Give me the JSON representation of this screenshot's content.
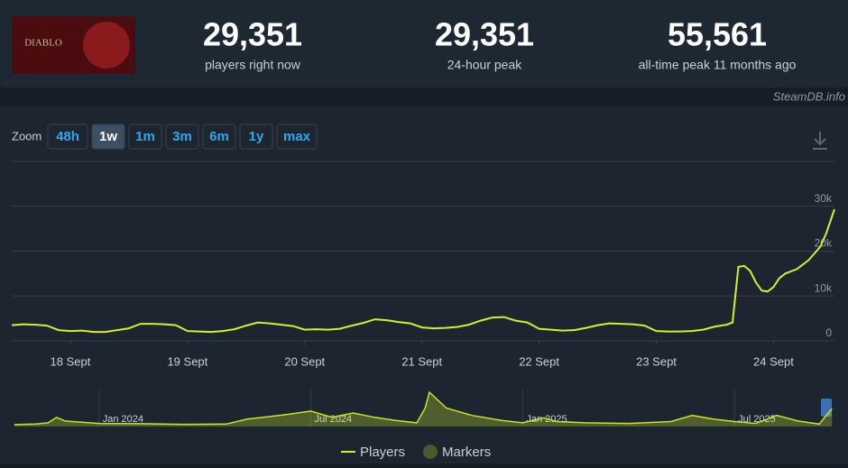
{
  "header": {
    "game_logo_text": "DIABLO",
    "stats": [
      {
        "value": "29,351",
        "label": "players right now"
      },
      {
        "value": "29,351",
        "label": "24-hour peak"
      },
      {
        "value": "55,561",
        "label": "all-time peak 11 months ago"
      }
    ],
    "watermark": "SteamDB.info"
  },
  "zoom": {
    "label": "Zoom",
    "buttons": [
      "48h",
      "1w",
      "1m",
      "3m",
      "6m",
      "1y",
      "max"
    ],
    "active": 1
  },
  "legend": {
    "items": [
      {
        "name": "Players",
        "color": "#d4ef2c"
      },
      {
        "name": "Markers",
        "color": "#4b5a2c"
      }
    ]
  },
  "chart_data": [
    {
      "type": "line",
      "series": [
        {
          "name": "Players",
          "color": "#d4ef2c",
          "x": [
            17.5,
            17.6,
            17.7,
            17.8,
            17.9,
            18.0,
            18.1,
            18.2,
            18.3,
            18.4,
            18.5,
            18.6,
            18.7,
            18.8,
            18.9,
            19.0,
            19.1,
            19.2,
            19.3,
            19.4,
            19.5,
            19.6,
            19.7,
            19.8,
            19.9,
            20.0,
            20.1,
            20.2,
            20.3,
            20.4,
            20.5,
            20.6,
            20.7,
            20.8,
            20.9,
            21.0,
            21.1,
            21.2,
            21.3,
            21.4,
            21.5,
            21.6,
            21.7,
            21.8,
            21.9,
            22.0,
            22.1,
            22.2,
            22.3,
            22.4,
            22.5,
            22.6,
            22.7,
            22.8,
            22.9,
            23.0,
            23.1,
            23.2,
            23.3,
            23.4,
            23.5,
            23.6,
            23.65,
            23.7,
            23.75,
            23.8,
            23.85,
            23.9,
            23.95,
            24.0,
            24.05,
            24.1,
            24.2,
            24.3,
            24.35,
            24.4,
            24.45,
            24.52
          ],
          "values": [
            3500,
            3700,
            3600,
            3400,
            2400,
            2200,
            2300,
            2000,
            2000,
            2400,
            2800,
            3800,
            3800,
            3700,
            3500,
            2200,
            2100,
            2000,
            2200,
            2600,
            3400,
            4100,
            3900,
            3600,
            3300,
            2500,
            2600,
            2500,
            2700,
            3400,
            4000,
            4800,
            4600,
            4200,
            3900,
            3000,
            2800,
            2900,
            3100,
            3600,
            4500,
            5200,
            5300,
            4500,
            4100,
            2700,
            2500,
            2300,
            2400,
            2900,
            3500,
            3900,
            3800,
            3700,
            3400,
            2200,
            2100,
            2100,
            2200,
            2500,
            3200,
            3600,
            4100,
            16500,
            16700,
            15600,
            13000,
            11200,
            11000,
            12000,
            14000,
            15000,
            16000,
            18000,
            19500,
            21000,
            24000,
            29351
          ]
        }
      ],
      "xlim": [
        17.5,
        24.52
      ],
      "xticks": [
        {
          "value": 18,
          "label": "18 Sept"
        },
        {
          "value": 19,
          "label": "19 Sept"
        },
        {
          "value": 20,
          "label": "20 Sept"
        },
        {
          "value": 21,
          "label": "21 Sept"
        },
        {
          "value": 22,
          "label": "22 Sept"
        },
        {
          "value": 23,
          "label": "23 Sept"
        },
        {
          "value": 24,
          "label": "24 Sept"
        }
      ],
      "ylim": [
        0,
        40000
      ],
      "yticks": [
        0,
        {
          "value": 10000,
          "label": "10k"
        },
        {
          "value": 20000,
          "label": "20k"
        },
        {
          "value": 30000,
          "label": "30k"
        }
      ],
      "grid": true
    },
    {
      "type": "area",
      "series": [
        {
          "name": "Players",
          "color": "#c8e22a",
          "x": [
            2023.8,
            2023.85,
            2023.88,
            2023.9,
            2023.92,
            2023.96,
            2024.0,
            2024.1,
            2024.2,
            2024.3,
            2024.35,
            2024.4,
            2024.45,
            2024.5,
            2024.55,
            2024.6,
            2024.65,
            2024.7,
            2024.75,
            2024.77,
            2024.78,
            2024.82,
            2024.88,
            2024.95,
            2025.0,
            2025.05,
            2025.08,
            2025.15,
            2025.25,
            2025.35,
            2025.4,
            2025.45,
            2025.5,
            2025.55,
            2025.6,
            2025.65,
            2025.7,
            2025.73
          ],
          "values": [
            3000,
            4000,
            6000,
            15000,
            9000,
            7000,
            5000,
            4500,
            3500,
            4000,
            12000,
            16000,
            20000,
            25000,
            15000,
            22000,
            15000,
            10000,
            6000,
            30000,
            55561,
            30000,
            18000,
            10000,
            6000,
            14000,
            8000,
            6000,
            5000,
            8000,
            18000,
            12000,
            8000,
            5000,
            18000,
            9000,
            4000,
            29351
          ]
        }
      ],
      "xlim": [
        2023.794,
        2025.736
      ],
      "xticks": [
        {
          "value": 2024.0,
          "label": "Jan 2024"
        },
        {
          "value": 2024.5,
          "label": "Jul 2024"
        },
        {
          "value": 2025.0,
          "label": "Jan 2025"
        },
        {
          "value": 2025.5,
          "label": "Jul 2025"
        }
      ],
      "ylim": [
        0,
        60000
      ]
    }
  ]
}
